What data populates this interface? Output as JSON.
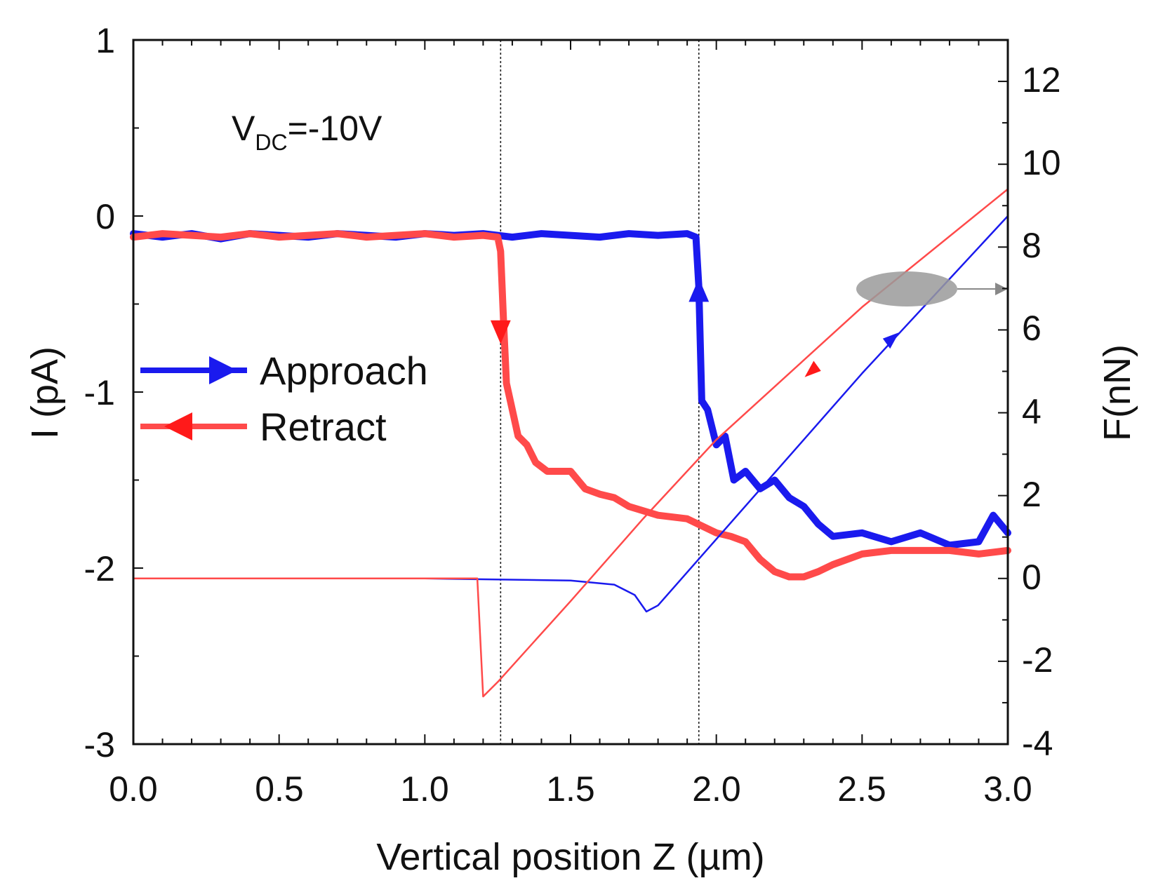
{
  "chart_data": {
    "type": "line",
    "title": "",
    "annotation": {
      "main": "V",
      "sub": "DC",
      "rest": "=-10V"
    },
    "xlabel": "Vertical position Z (µm)",
    "ylabel_left": "I (pA)",
    "ylabel_right": "F(nN)",
    "xlim": [
      0.0,
      3.0
    ],
    "ylim_left": [
      -3,
      1
    ],
    "ylim_right": [
      -4,
      13
    ],
    "x_ticks": [
      "0.0",
      "0.5",
      "1.0",
      "1.5",
      "2.0",
      "2.5",
      "3.0"
    ],
    "y_left_ticks": [
      "1",
      "0",
      "-1",
      "-2",
      "-3"
    ],
    "y_right_ticks": [
      "12",
      "10",
      "8",
      "6",
      "4",
      "2",
      "0",
      "-2",
      "-4"
    ],
    "vlines": [
      1.26,
      1.94
    ],
    "legend": [
      {
        "name": "Approach",
        "color": "#1a1aee",
        "marker": "right"
      },
      {
        "name": "Retract",
        "color": "#ff4a4a",
        "marker": "left"
      }
    ],
    "series": [
      {
        "name": "Approach current",
        "axis": "left",
        "color": "#1a1aee",
        "points": [
          [
            0.0,
            -0.1
          ],
          [
            0.1,
            -0.12
          ],
          [
            0.2,
            -0.1
          ],
          [
            0.3,
            -0.13
          ],
          [
            0.4,
            -0.1
          ],
          [
            0.5,
            -0.11
          ],
          [
            0.6,
            -0.12
          ],
          [
            0.7,
            -0.1
          ],
          [
            0.8,
            -0.11
          ],
          [
            0.9,
            -0.12
          ],
          [
            1.0,
            -0.1
          ],
          [
            1.1,
            -0.11
          ],
          [
            1.2,
            -0.1
          ],
          [
            1.3,
            -0.12
          ],
          [
            1.4,
            -0.1
          ],
          [
            1.5,
            -0.11
          ],
          [
            1.6,
            -0.12
          ],
          [
            1.7,
            -0.1
          ],
          [
            1.8,
            -0.11
          ],
          [
            1.9,
            -0.1
          ],
          [
            1.93,
            -0.12
          ],
          [
            1.94,
            -0.4
          ],
          [
            1.95,
            -1.05
          ],
          [
            1.97,
            -1.1
          ],
          [
            2.0,
            -1.3
          ],
          [
            2.03,
            -1.25
          ],
          [
            2.06,
            -1.5
          ],
          [
            2.1,
            -1.45
          ],
          [
            2.15,
            -1.55
          ],
          [
            2.2,
            -1.5
          ],
          [
            2.25,
            -1.6
          ],
          [
            2.3,
            -1.65
          ],
          [
            2.35,
            -1.75
          ],
          [
            2.4,
            -1.82
          ],
          [
            2.5,
            -1.8
          ],
          [
            2.6,
            -1.85
          ],
          [
            2.7,
            -1.8
          ],
          [
            2.8,
            -1.87
          ],
          [
            2.9,
            -1.85
          ],
          [
            2.95,
            -1.7
          ],
          [
            3.0,
            -1.8
          ]
        ]
      },
      {
        "name": "Retract current",
        "axis": "left",
        "color": "#ff4a4a",
        "points": [
          [
            0.0,
            -0.12
          ],
          [
            0.1,
            -0.1
          ],
          [
            0.2,
            -0.11
          ],
          [
            0.3,
            -0.12
          ],
          [
            0.4,
            -0.1
          ],
          [
            0.5,
            -0.12
          ],
          [
            0.6,
            -0.11
          ],
          [
            0.7,
            -0.1
          ],
          [
            0.8,
            -0.12
          ],
          [
            0.9,
            -0.11
          ],
          [
            1.0,
            -0.1
          ],
          [
            1.1,
            -0.12
          ],
          [
            1.2,
            -0.11
          ],
          [
            1.25,
            -0.12
          ],
          [
            1.26,
            -0.2
          ],
          [
            1.27,
            -0.6
          ],
          [
            1.28,
            -0.95
          ],
          [
            1.3,
            -1.1
          ],
          [
            1.32,
            -1.25
          ],
          [
            1.35,
            -1.3
          ],
          [
            1.38,
            -1.4
          ],
          [
            1.42,
            -1.45
          ],
          [
            1.5,
            -1.45
          ],
          [
            1.55,
            -1.55
          ],
          [
            1.6,
            -1.58
          ],
          [
            1.65,
            -1.6
          ],
          [
            1.7,
            -1.65
          ],
          [
            1.8,
            -1.7
          ],
          [
            1.9,
            -1.72
          ],
          [
            2.0,
            -1.8
          ],
          [
            2.05,
            -1.82
          ],
          [
            2.1,
            -1.85
          ],
          [
            2.15,
            -1.95
          ],
          [
            2.2,
            -2.02
          ],
          [
            2.25,
            -2.05
          ],
          [
            2.3,
            -2.05
          ],
          [
            2.35,
            -2.02
          ],
          [
            2.4,
            -1.98
          ],
          [
            2.5,
            -1.92
          ],
          [
            2.6,
            -1.9
          ],
          [
            2.7,
            -1.9
          ],
          [
            2.8,
            -1.9
          ],
          [
            2.9,
            -1.92
          ],
          [
            3.0,
            -1.9
          ]
        ]
      },
      {
        "name": "Approach force",
        "axis": "right",
        "color": "#1a1aee",
        "points": [
          [
            0.0,
            0.0
          ],
          [
            1.0,
            0.0
          ],
          [
            1.5,
            -0.05
          ],
          [
            1.65,
            -0.15
          ],
          [
            1.72,
            -0.4
          ],
          [
            1.76,
            -0.8
          ],
          [
            1.8,
            -0.65
          ],
          [
            2.0,
            0.95
          ],
          [
            2.5,
            4.95
          ],
          [
            3.0,
            8.75
          ]
        ]
      },
      {
        "name": "Retract force",
        "axis": "right",
        "color": "#ff4a4a",
        "points": [
          [
            0.0,
            0.0
          ],
          [
            1.18,
            0.0
          ],
          [
            1.2,
            -2.85
          ],
          [
            1.25,
            -2.5
          ],
          [
            1.5,
            -0.55
          ],
          [
            1.75,
            1.45
          ],
          [
            2.0,
            3.35
          ],
          [
            2.5,
            6.55
          ],
          [
            3.0,
            9.4
          ]
        ]
      }
    ]
  }
}
